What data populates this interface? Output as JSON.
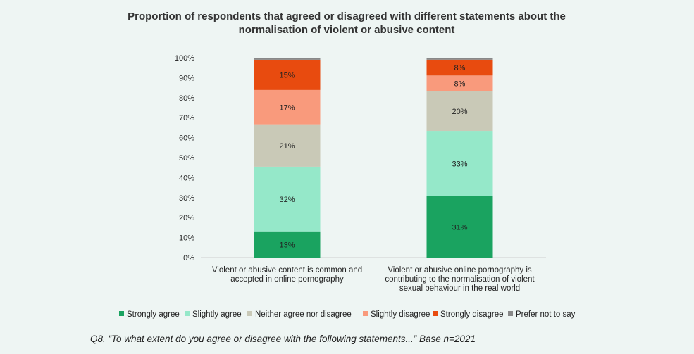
{
  "chart_data": {
    "type": "bar",
    "stacked": true,
    "title": [
      "Proportion of respondents that agreed or disagreed with different statements about the",
      "normalisation of violent or abusive content"
    ],
    "categories": [
      [
        "Violent or abusive content is common and",
        "accepted in online pornography"
      ],
      [
        "Violent or abusive online pornography is",
        "contributing to the normalisation of violent",
        "sexual behaviour in the real world"
      ]
    ],
    "ylim": [
      0,
      100
    ],
    "yticks": [
      "0%",
      "10%",
      "20%",
      "30%",
      "40%",
      "50%",
      "60%",
      "70%",
      "80%",
      "90%",
      "100%"
    ],
    "series": [
      {
        "name": "Strongly agree",
        "color": "#1aa360",
        "values": [
          13,
          31
        ],
        "labels": [
          "13%",
          "31%"
        ]
      },
      {
        "name": "Slightly agree",
        "color": "#95e8c9",
        "values": [
          32,
          33
        ],
        "labels": [
          "32%",
          "33%"
        ]
      },
      {
        "name": "Neither agree nor disagree",
        "color": "#c9c9b7",
        "values": [
          21,
          20
        ],
        "labels": [
          "21%",
          "20%"
        ]
      },
      {
        "name": "Slightly disagree",
        "color": "#f99a7c",
        "values": [
          17,
          8
        ],
        "labels": [
          "17%",
          "8%"
        ]
      },
      {
        "name": "Strongly disagree",
        "color": "#e84b0f",
        "values": [
          15,
          8
        ],
        "labels": [
          "15%",
          "8%"
        ]
      },
      {
        "name": "Prefer not to say",
        "color": "#888888",
        "values": [
          1,
          1
        ],
        "labels": [
          "",
          ""
        ]
      }
    ],
    "legend_position": "bottom",
    "grid": false
  },
  "footnote": "Q8. “To what extent do you agree or disagree with the following statements...” Base n=2021"
}
